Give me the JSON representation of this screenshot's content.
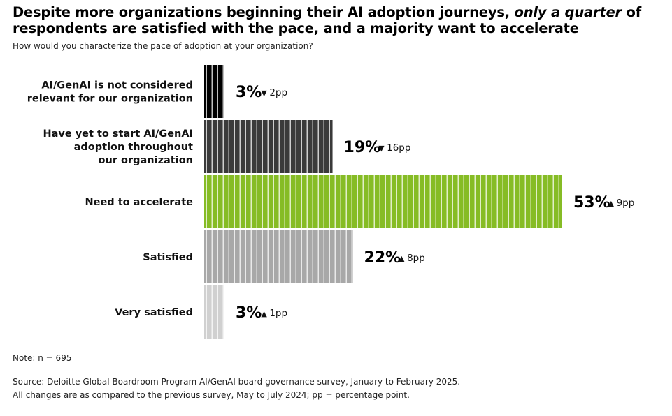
{
  "title": {
    "part1": "Despite more organizations beginning their AI adoption journeys, ",
    "emphasis": "only a quarter",
    "part2": " of respondents are satisfied with the pace, and a majority want to accelerate"
  },
  "subtitle": "How would you characterize the pace of adoption at your organization?",
  "note": "Note: n = 695",
  "source": {
    "line1": "Source: Deloitte Global Boardroom Program AI/GenAI board governance survey, January to February 2025.",
    "line2": "All changes are as compared to the previous survey, May to July 2024; pp = percentage point."
  },
  "chart_data": {
    "type": "bar",
    "orientation": "horizontal",
    "categories": [
      [
        "AI/GenAI is not considered",
        "relevant for our organization"
      ],
      [
        "Have yet to start AI/GenAI",
        "adoption throughout",
        "our organization"
      ],
      [
        "Need to accelerate"
      ],
      [
        "Satisfied"
      ],
      [
        "Very satisfied"
      ]
    ],
    "values": [
      3,
      19,
      53,
      22,
      3
    ],
    "value_labels": [
      "3%",
      "19%",
      "53%",
      "22%",
      "3%"
    ],
    "changes": [
      {
        "direction": "down",
        "label": "2pp"
      },
      {
        "direction": "down",
        "label": "16pp"
      },
      {
        "direction": "up",
        "label": "9pp"
      },
      {
        "direction": "up",
        "label": "8pp"
      },
      {
        "direction": "up",
        "label": "1pp"
      }
    ],
    "colors": [
      "#000000",
      "#3a3a3a",
      "#86bc25",
      "#a8a8a8",
      "#d0d0d0"
    ],
    "arrow_glyphs": {
      "up": "▲",
      "down": "▼"
    },
    "xlim": [
      0,
      53
    ],
    "stripes": true
  }
}
